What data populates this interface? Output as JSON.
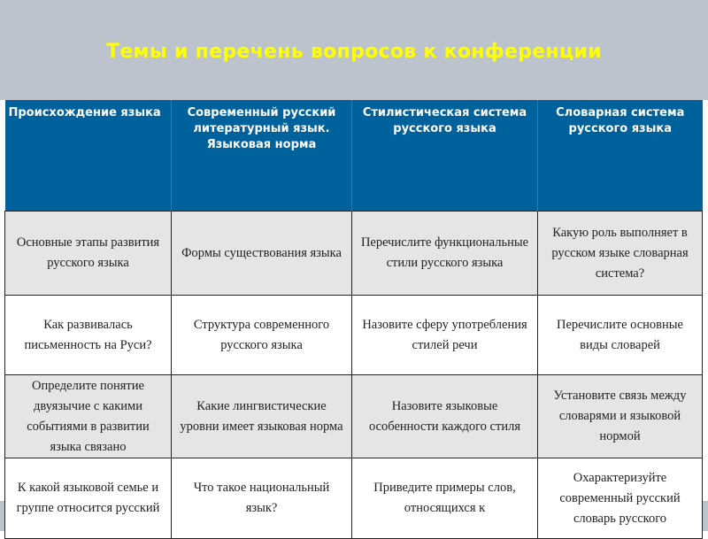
{
  "title": "Темы и перечень вопросов к конференции",
  "headers": [
    "Происхождение языка",
    "Современный русский литературный язык. Языковая норма",
    "Стилистическая система русского языка",
    "Словарная система русского языка"
  ],
  "rows": [
    [
      "Основные этапы развития русского языка",
      "Формы существования языка",
      "Перечислите функциональные стили русского языка",
      "Какую роль выполняет в русском языке словарная система?"
    ],
    [
      "Как развивалась письменность на Руси?",
      "Структура современного русского языка",
      "Назовите сферу употребления стилей речи",
      "Перечислите основные виды словарей"
    ],
    [
      "Определите понятие двуязычие с какими событиями в развитии языка связано",
      "Какие лингвистические уровни имеет языковая норма",
      "Назовите языковые особенности  каждого стиля",
      "Установите связь между словарями и языковой нормой"
    ],
    [
      "К какой языковой семье и группе относится русский",
      "Что такое национальный язык?",
      "Приведите примеры слов, относящихся к",
      "Охарактеризуйте современный русский словарь русского"
    ]
  ],
  "colors": {
    "header_bg": "#00629c",
    "title": "#ffff00",
    "slide_bg": "#bdc3cc",
    "row_gray": "#e5e5e5"
  }
}
